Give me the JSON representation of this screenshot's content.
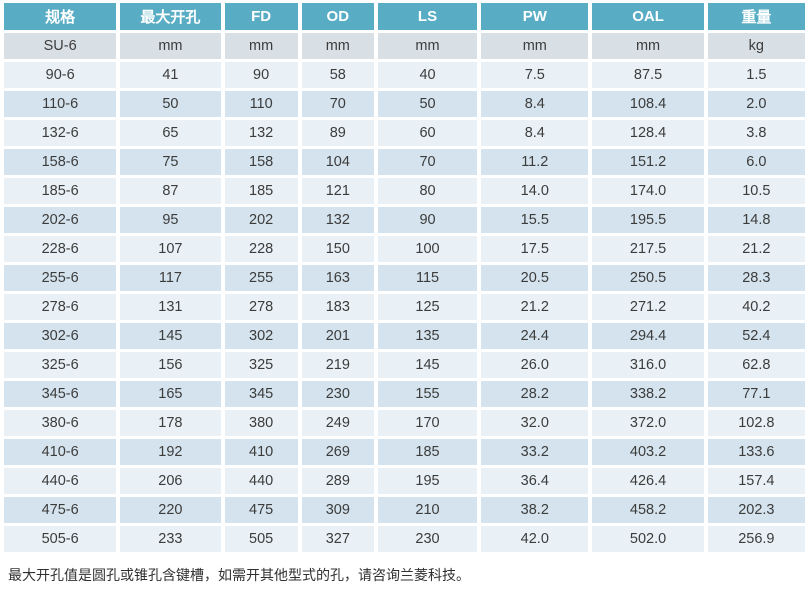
{
  "table": {
    "headers": [
      "规格",
      "最大开孔",
      "FD",
      "OD",
      "LS",
      "PW",
      "OAL",
      "重量"
    ],
    "units_row": [
      "SU-6",
      "mm",
      "mm",
      "mm",
      "mm",
      "mm",
      "mm",
      "kg"
    ],
    "rows": [
      [
        "90-6",
        "41",
        "90",
        "58",
        "40",
        "7.5",
        "87.5",
        "1.5"
      ],
      [
        "110-6",
        "50",
        "110",
        "70",
        "50",
        "8.4",
        "108.4",
        "2.0"
      ],
      [
        "132-6",
        "65",
        "132",
        "89",
        "60",
        "8.4",
        "128.4",
        "3.8"
      ],
      [
        "158-6",
        "75",
        "158",
        "104",
        "70",
        "11.2",
        "151.2",
        "6.0"
      ],
      [
        "185-6",
        "87",
        "185",
        "121",
        "80",
        "14.0",
        "174.0",
        "10.5"
      ],
      [
        "202-6",
        "95",
        "202",
        "132",
        "90",
        "15.5",
        "195.5",
        "14.8"
      ],
      [
        "228-6",
        "107",
        "228",
        "150",
        "100",
        "17.5",
        "217.5",
        "21.2"
      ],
      [
        "255-6",
        "117",
        "255",
        "163",
        "115",
        "20.5",
        "250.5",
        "28.3"
      ],
      [
        "278-6",
        "131",
        "278",
        "183",
        "125",
        "21.2",
        "271.2",
        "40.2"
      ],
      [
        "302-6",
        "145",
        "302",
        "201",
        "135",
        "24.4",
        "294.4",
        "52.4"
      ],
      [
        "325-6",
        "156",
        "325",
        "219",
        "145",
        "26.0",
        "316.0",
        "62.8"
      ],
      [
        "345-6",
        "165",
        "345",
        "230",
        "155",
        "28.2",
        "338.2",
        "77.1"
      ],
      [
        "380-6",
        "178",
        "380",
        "249",
        "170",
        "32.0",
        "372.0",
        "102.8"
      ],
      [
        "410-6",
        "192",
        "410",
        "269",
        "185",
        "33.2",
        "403.2",
        "133.6"
      ],
      [
        "440-6",
        "206",
        "440",
        "289",
        "195",
        "36.4",
        "426.4",
        "157.4"
      ],
      [
        "475-6",
        "220",
        "475",
        "309",
        "210",
        "38.2",
        "458.2",
        "202.3"
      ],
      [
        "505-6",
        "233",
        "505",
        "327",
        "230",
        "42.0",
        "502.0",
        "256.9"
      ]
    ]
  },
  "footnote": "最大开孔值是圆孔或锥孔含键槽，如需开其他型式的孔，请咨询兰菱科技。",
  "colors": {
    "header_bg": "#58adc4",
    "header_text": "#ffffff",
    "units_row_bg": "#d8dfe5",
    "row_odd_bg": "#d4e3ed",
    "row_even_bg": "#e9f1f6",
    "body_text": "#3c3c3c"
  }
}
